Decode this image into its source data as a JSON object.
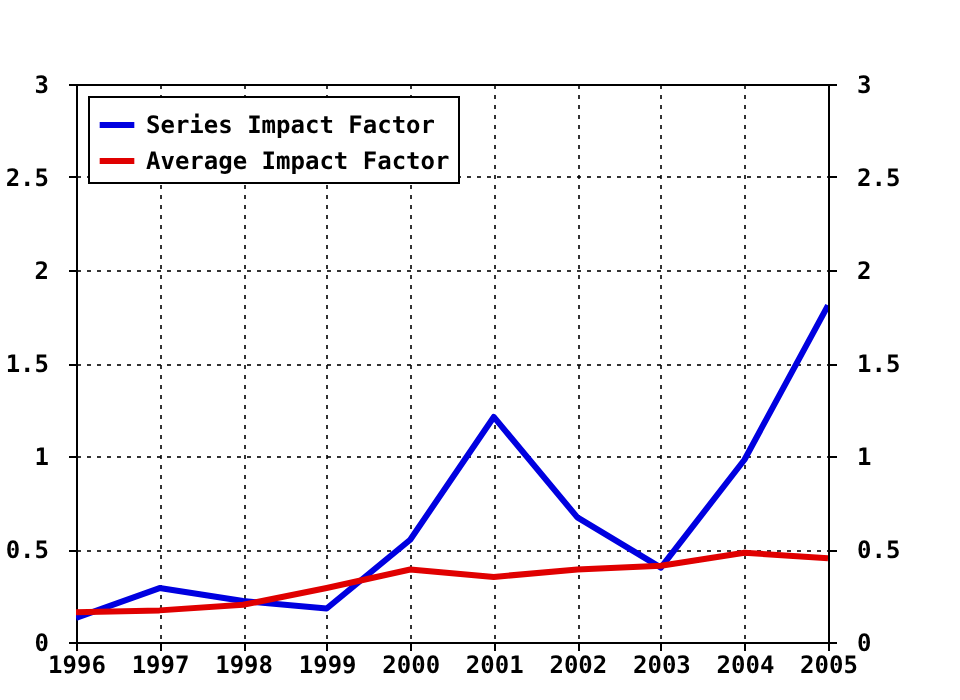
{
  "chart_data": {
    "type": "line",
    "x": [
      1996,
      1997,
      1998,
      1999,
      2000,
      2001,
      2002,
      2003,
      2004,
      2005
    ],
    "series": [
      {
        "name": "Series Impact Factor",
        "color": "#0000e0",
        "values": [
          0.13,
          0.29,
          0.22,
          0.18,
          0.55,
          1.21,
          0.67,
          0.4,
          0.98,
          1.81
        ]
      },
      {
        "name": "Average Impact Factor",
        "color": "#e00000",
        "values": [
          0.16,
          0.17,
          0.2,
          0.29,
          0.39,
          0.35,
          0.39,
          0.41,
          0.48,
          0.45
        ]
      }
    ],
    "xlim": [
      1996,
      2005
    ],
    "xticks": [
      1996,
      1997,
      1998,
      1999,
      2000,
      2001,
      2002,
      2003,
      2004,
      2005
    ],
    "ylim": [
      0,
      3
    ],
    "yticks": [
      0,
      0.5,
      1,
      1.5,
      2,
      2.5,
      3
    ],
    "y2lim": [
      0,
      3
    ],
    "y2ticks": [
      0,
      0.5,
      1,
      1.5,
      2,
      2.5,
      3
    ],
    "grid": true,
    "legend": "top left",
    "marker": "none",
    "line_style": "solid"
  }
}
